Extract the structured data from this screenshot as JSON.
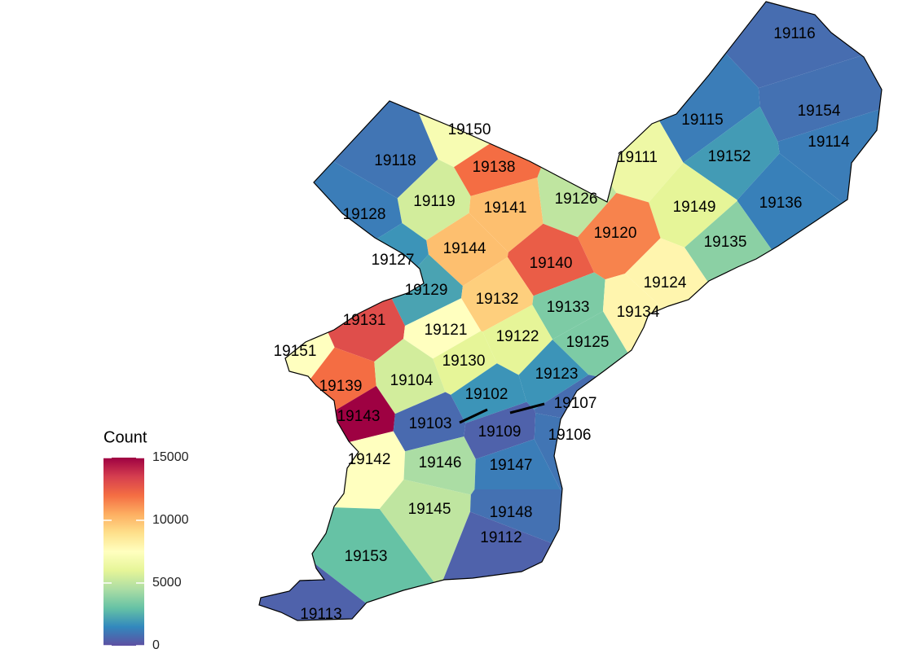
{
  "chart_data": {
    "type": "choropleth",
    "legend_title": "Count",
    "categories": [
      "19116",
      "19154",
      "19114",
      "19115",
      "19152",
      "19136",
      "19111",
      "19149",
      "19135",
      "19150",
      "19138",
      "19118",
      "19119",
      "19126",
      "19141",
      "19128",
      "19120",
      "19144",
      "19140",
      "19127",
      "19124",
      "19129",
      "19132",
      "19133",
      "19134",
      "19131",
      "19121",
      "19122",
      "19125",
      "19151",
      "19130",
      "19123",
      "19139",
      "19104",
      "19102",
      "19107",
      "19143",
      "19103",
      "19109",
      "19106",
      "19142",
      "19146",
      "19147",
      "19145",
      "19148",
      "19112",
      "19153",
      "19113"
    ],
    "values": [
      800,
      900,
      1200,
      1200,
      2000,
      1300,
      6500,
      6000,
      3800,
      7000,
      12000,
      1000,
      5500,
      5000,
      10000,
      1200,
      11500,
      10000,
      12500,
      1800,
      8000,
      2200,
      9500,
      3500,
      8000,
      13000,
      7500,
      6000,
      3500,
      7500,
      6000,
      1800,
      12000,
      5500,
      1800,
      800,
      15000,
      700,
      500,
      1000,
      7500,
      4500,
      1200,
      5000,
      900,
      500,
      3000,
      500
    ],
    "colorbar_lim": [
      0,
      15000
    ],
    "colorbar_ticks": [
      0,
      5000,
      10000,
      15000
    ],
    "colormap": "Spectral"
  }
}
